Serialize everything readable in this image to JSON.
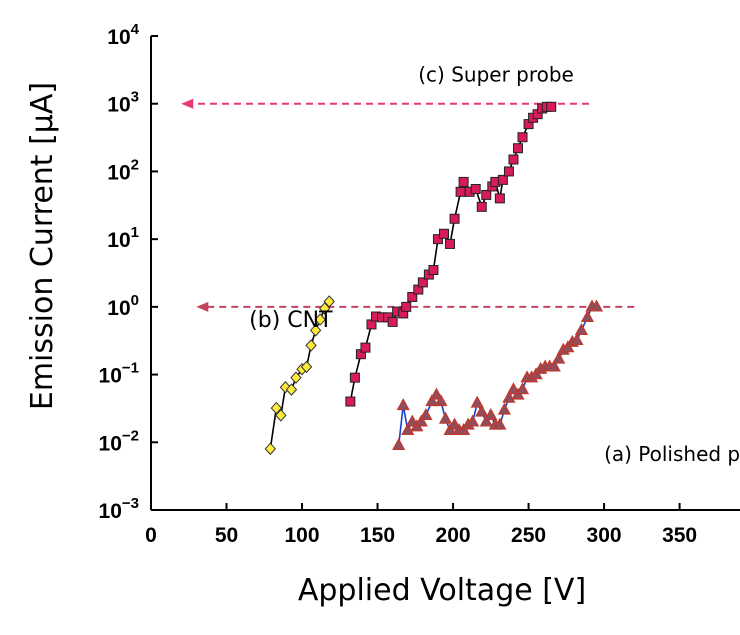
{
  "chart_data": {
    "type": "scatter",
    "title": "",
    "xlabel": "Applied Voltage [V]",
    "ylabel": "Emission Current [μA]",
    "xlim": [
      0,
      390
    ],
    "ylim_exponent": [
      -3,
      4
    ],
    "y_scale": "log",
    "x_ticks": [
      "0",
      "50",
      "100",
      "150",
      "200",
      "250",
      "300",
      "350"
    ],
    "x_tick_values": [
      0,
      50,
      100,
      150,
      200,
      250,
      300,
      350
    ],
    "y_ticks": [
      {
        "base": "10",
        "exp": "4",
        "value": 4
      },
      {
        "base": "10",
        "exp": "3",
        "value": 3
      },
      {
        "base": "10",
        "exp": "2",
        "value": 2
      },
      {
        "base": "10",
        "exp": "1",
        "value": 1
      },
      {
        "base": "10",
        "exp": "0",
        "value": 0
      },
      {
        "base": "10",
        "exp": "−1",
        "value": -1
      },
      {
        "base": "10",
        "exp": "−2",
        "value": -2
      },
      {
        "base": "10",
        "exp": "−3",
        "value": -3
      }
    ],
    "grid": false,
    "series": [
      {
        "label": "(c) Super probe",
        "marker": "square",
        "marker_color": "#d81b5a",
        "line_color": "#000000",
        "points": [
          [
            132,
            0.04
          ],
          [
            135,
            0.09
          ],
          [
            139,
            0.2
          ],
          [
            142,
            0.25
          ],
          [
            146,
            0.55
          ],
          [
            149,
            0.72
          ],
          [
            153,
            0.7
          ],
          [
            157,
            0.7
          ],
          [
            160,
            0.6
          ],
          [
            163,
            0.85
          ],
          [
            167,
            0.8
          ],
          [
            169,
            1.0
          ],
          [
            173,
            1.4
          ],
          [
            177,
            1.8
          ],
          [
            180,
            2.3
          ],
          [
            184,
            3.0
          ],
          [
            187,
            3.5
          ],
          [
            190,
            10
          ],
          [
            194,
            12
          ],
          [
            198,
            8.5
          ],
          [
            201,
            20
          ],
          [
            205,
            50
          ],
          [
            207,
            70
          ],
          [
            211,
            50
          ],
          [
            215,
            55
          ],
          [
            219,
            30
          ],
          [
            222,
            45
          ],
          [
            226,
            60
          ],
          [
            228,
            70
          ],
          [
            231,
            40
          ],
          [
            233,
            75
          ],
          [
            237,
            100
          ],
          [
            240,
            150
          ],
          [
            243,
            220
          ],
          [
            246,
            320
          ],
          [
            250,
            500
          ],
          [
            253,
            620
          ],
          [
            256,
            700
          ],
          [
            259,
            850
          ],
          [
            262,
            900
          ],
          [
            265,
            900
          ]
        ]
      },
      {
        "label": "(b) CNT",
        "marker": "diamond",
        "marker_color": "#ffeb3b",
        "line_color": "#000000",
        "points": [
          [
            79,
            0.008
          ],
          [
            83,
            0.032
          ],
          [
            86,
            0.025
          ],
          [
            89,
            0.065
          ],
          [
            93,
            0.06
          ],
          [
            96,
            0.09
          ],
          [
            100,
            0.12
          ],
          [
            103,
            0.13
          ],
          [
            106,
            0.27
          ],
          [
            109,
            0.45
          ],
          [
            112,
            0.65
          ],
          [
            115,
            0.95
          ],
          [
            118,
            1.2
          ]
        ]
      },
      {
        "label": "(a) Polished  probe",
        "marker": "triangle",
        "marker_color": "#8d4e5f",
        "marker_edge": "#c0392b",
        "line_color": "#1a3fcf",
        "points": [
          [
            164,
            0.009
          ],
          [
            167,
            0.035
          ],
          [
            170,
            0.015
          ],
          [
            173,
            0.02
          ],
          [
            176,
            0.017
          ],
          [
            179,
            0.02
          ],
          [
            182,
            0.025
          ],
          [
            186,
            0.04
          ],
          [
            189,
            0.05
          ],
          [
            192,
            0.04
          ],
          [
            195,
            0.022
          ],
          [
            198,
            0.015
          ],
          [
            201,
            0.018
          ],
          [
            204,
            0.015
          ],
          [
            207,
            0.015
          ],
          [
            210,
            0.018
          ],
          [
            213,
            0.02
          ],
          [
            216,
            0.038
          ],
          [
            219,
            0.028
          ],
          [
            222,
            0.02
          ],
          [
            225,
            0.025
          ],
          [
            228,
            0.018
          ],
          [
            231,
            0.018
          ],
          [
            234,
            0.03
          ],
          [
            237,
            0.045
          ],
          [
            240,
            0.06
          ],
          [
            243,
            0.05
          ],
          [
            246,
            0.06
          ],
          [
            249,
            0.09
          ],
          [
            252,
            0.09
          ],
          [
            255,
            0.1
          ],
          [
            258,
            0.12
          ],
          [
            261,
            0.13
          ],
          [
            264,
            0.13
          ],
          [
            267,
            0.13
          ],
          [
            270,
            0.17
          ],
          [
            273,
            0.23
          ],
          [
            276,
            0.25
          ],
          [
            279,
            0.3
          ],
          [
            282,
            0.32
          ],
          [
            285,
            0.45
          ],
          [
            289,
            0.7
          ],
          [
            292,
            1.0
          ],
          [
            295,
            1.0
          ]
        ]
      }
    ],
    "annotations": [
      {
        "text": "(c) Super probe",
        "x": 280,
        "y_exp": 3.33
      },
      {
        "text": "(b) CNT",
        "x": 65,
        "y_exp": -0.3
      },
      {
        "text": "(a) Polished  probe",
        "x": 300,
        "y_exp": -2.28
      }
    ],
    "arrows": [
      {
        "from_x": 290,
        "to_x": 20,
        "y": 1000,
        "color": "#e8377a"
      },
      {
        "from_x": 320,
        "to_x": 30,
        "y": 1,
        "color": "#c2455e"
      }
    ]
  }
}
